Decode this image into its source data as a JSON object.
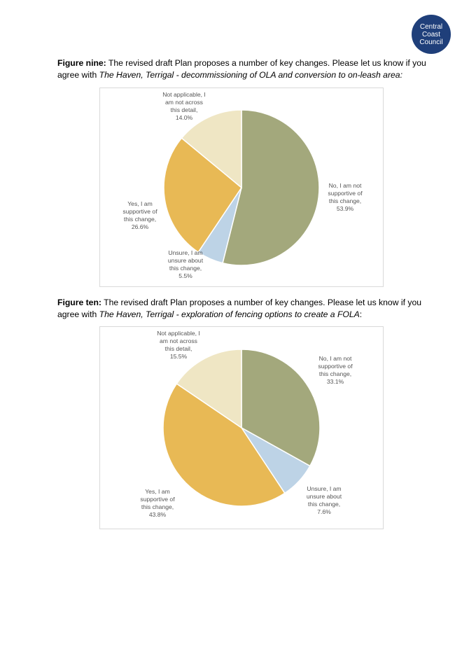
{
  "logo": {
    "lines": [
      "Central",
      "Coast",
      "Council"
    ]
  },
  "figures": [
    {
      "label": "Figure nine:",
      "text": " The revised draft Plan proposes a number of key changes. Please let us know if you agree with ",
      "italic": "The Haven, Terrigal - decommissioning of OLA and conversion to on-leash area:"
    },
    {
      "label": "Figure ten:",
      "text": " The revised draft Plan proposes a number of key changes. Please let us know if you agree with ",
      "italic": "The Haven, Terrigal - exploration of fencing options to create a FOLA",
      "tail": ":"
    }
  ],
  "chart_data": [
    {
      "type": "pie",
      "categories": [
        "No, I am not supportive of this change",
        "Unsure, I am unsure about this change",
        "Yes, I am supportive of this change",
        "Not applicable, I am not across this detail"
      ],
      "values": [
        53.9,
        5.5,
        26.6,
        14.0
      ],
      "colors": [
        "#a3a87c",
        "#bdd3e6",
        "#e8b955",
        "#efe6c4"
      ],
      "labels": [
        [
          "No, I am not",
          "supportive of",
          "this change,",
          "53.9%"
        ],
        [
          "Unsure, I am",
          "unsure about",
          "this change,",
          "5.5%"
        ],
        [
          "Yes, I am",
          "supportive of",
          "this change,",
          "26.6%"
        ],
        [
          "Not applicable, I",
          "am not across",
          "this detail,",
          "14.0%"
        ]
      ]
    },
    {
      "type": "pie",
      "categories": [
        "No, I am not supportive of this change",
        "Unsure, I am unsure about this change",
        "Yes, I am supportive of this change",
        "Not applicable, I am not across this detail"
      ],
      "values": [
        33.1,
        7.6,
        43.8,
        15.5
      ],
      "colors": [
        "#a3a87c",
        "#bdd3e6",
        "#e8b955",
        "#efe6c4"
      ],
      "labels": [
        [
          "No, I am not",
          "supportive of",
          "this change,",
          "33.1%"
        ],
        [
          "Unsure, I am",
          "unsure about",
          "this change,",
          "7.6%"
        ],
        [
          "Yes, I am",
          "supportive of",
          "this change,",
          "43.8%"
        ],
        [
          "Not applicable, I",
          "am not across",
          "this detail,",
          "15.5%"
        ]
      ]
    }
  ]
}
